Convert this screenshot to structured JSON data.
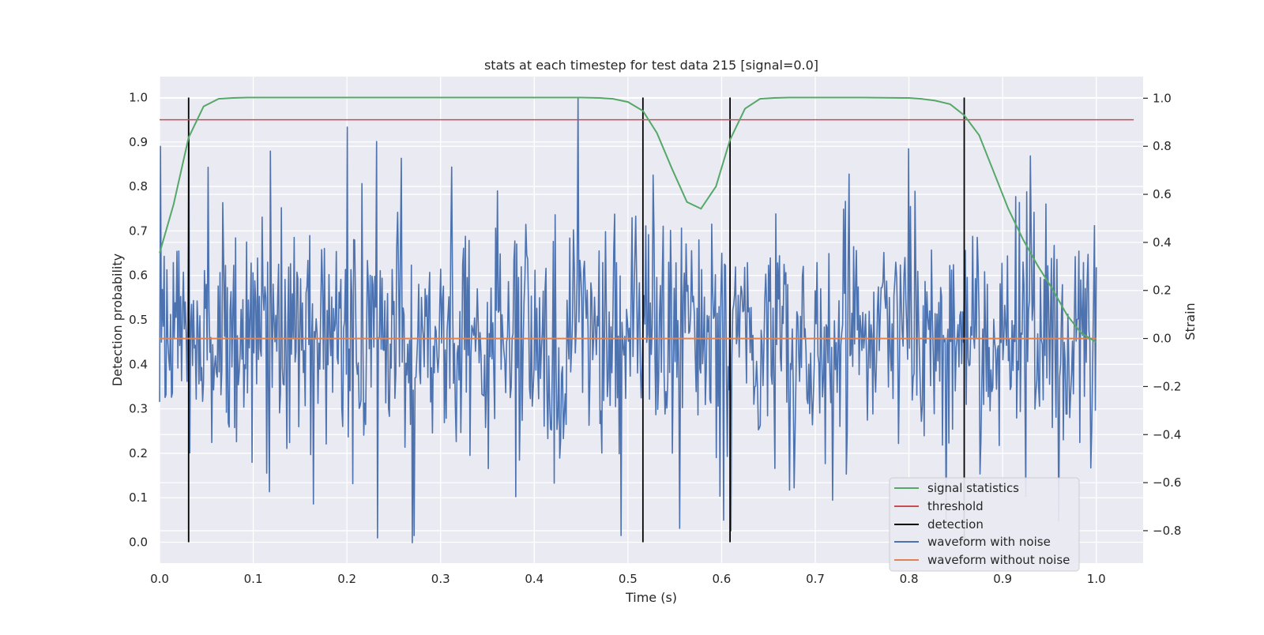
{
  "chart_data": {
    "type": "line",
    "title": "stats at each timestep for test data 215 [signal=0.0]",
    "xlabel": "Time (s)",
    "ylabel": "Detection probability",
    "ylabel_right": "Strain",
    "xlim": [
      0.0,
      1.05
    ],
    "ylim": [
      -0.047,
      1.047
    ],
    "ylim_right": [
      -0.935,
      1.09
    ],
    "x_ticks": [
      0.0,
      0.1,
      0.2,
      0.3,
      0.4,
      0.5,
      0.6,
      0.7,
      0.8,
      0.9,
      1.0
    ],
    "x_tick_labels": [
      "0.0",
      "0.1",
      "0.2",
      "0.3",
      "0.4",
      "0.5",
      "0.6",
      "0.7",
      "0.8",
      "0.9",
      "1.0"
    ],
    "y_ticks": [
      0.0,
      0.1,
      0.2,
      0.3,
      0.4,
      0.5,
      0.6,
      0.7,
      0.8,
      0.9,
      1.0
    ],
    "y_tick_labels": [
      "0.0",
      "0.1",
      "0.2",
      "0.3",
      "0.4",
      "0.5",
      "0.6",
      "0.7",
      "0.8",
      "0.9",
      "1.0"
    ],
    "y_right_ticks": [
      -0.8,
      -0.6,
      -0.4,
      -0.2,
      0.0,
      0.2,
      0.4,
      0.6,
      0.8,
      1.0
    ],
    "y_right_tick_labels": [
      "−0.8",
      "−0.6",
      "−0.4",
      "−0.2",
      "0.0",
      "0.2",
      "0.4",
      "0.6",
      "0.8",
      "1.0"
    ],
    "grid": true,
    "legend_position": "bottom-right",
    "colors": {
      "background": "#eaeaf2",
      "grid": "#ffffff",
      "signal": "#55a868",
      "threshold": "#c44e52",
      "detection": "#000000",
      "noise": "#4c72b0",
      "clean": "#dd8452"
    },
    "series": [
      {
        "name": "signal statistics",
        "axis": "left",
        "x": [
          0.0,
          0.015,
          0.031,
          0.047,
          0.063,
          0.078,
          0.094,
          0.11,
          0.2,
          0.3,
          0.4,
          0.45,
          0.47,
          0.484,
          0.5,
          0.516,
          0.531,
          0.547,
          0.563,
          0.578,
          0.594,
          0.609,
          0.625,
          0.641,
          0.656,
          0.672,
          0.7,
          0.75,
          0.8,
          0.813,
          0.828,
          0.844,
          0.859,
          0.875,
          0.891,
          0.906,
          0.922,
          0.938,
          0.953,
          0.969,
          0.984,
          1.0
        ],
        "y": [
          0.65,
          0.76,
          0.91,
          0.98,
          0.997,
          0.999,
          1.0,
          1.0,
          1.0,
          1.0,
          1.0,
          1.0,
          0.999,
          0.997,
          0.99,
          0.97,
          0.92,
          0.84,
          0.765,
          0.75,
          0.8,
          0.905,
          0.975,
          0.997,
          0.999,
          1.0,
          1.0,
          1.0,
          0.999,
          0.997,
          0.993,
          0.985,
          0.96,
          0.915,
          0.83,
          0.75,
          0.68,
          0.62,
          0.57,
          0.51,
          0.47,
          0.45
        ]
      },
      {
        "name": "threshold",
        "axis": "left",
        "x": [
          0.0,
          1.04
        ],
        "y": [
          0.95,
          0.95
        ]
      },
      {
        "name": "detection",
        "axis": "left",
        "x": [
          0.031,
          0.516,
          0.609,
          0.859
        ],
        "y": [
          1.0,
          1.0,
          1.0,
          1.0
        ]
      },
      {
        "name": "waveform with noise",
        "axis": "right",
        "n_samples": 1024,
        "x_range": [
          0.0,
          1.0
        ],
        "std": 0.25,
        "peaks": [
          {
            "x": 0.031,
            "y": 0.85
          },
          {
            "x": 0.118,
            "y": 0.78
          },
          {
            "x": 0.2,
            "y": 0.88
          },
          {
            "x": 0.258,
            "y": 0.75
          },
          {
            "x": 0.27,
            "y": -0.85
          },
          {
            "x": 0.233,
            "y": -0.83
          },
          {
            "x": 0.447,
            "y": 1.0
          },
          {
            "x": 0.527,
            "y": 0.68
          },
          {
            "x": 0.555,
            "y": -0.79
          },
          {
            "x": 0.61,
            "y": -0.8
          },
          {
            "x": 0.8,
            "y": 0.79
          },
          {
            "x": 0.93,
            "y": 0.76
          },
          {
            "x": 0.96,
            "y": -0.76
          },
          {
            "x": 0.995,
            "y": -0.38
          }
        ]
      },
      {
        "name": "waveform without noise",
        "axis": "right",
        "x": [
          0.0,
          1.0
        ],
        "y": [
          0.0,
          0.0
        ]
      }
    ]
  }
}
